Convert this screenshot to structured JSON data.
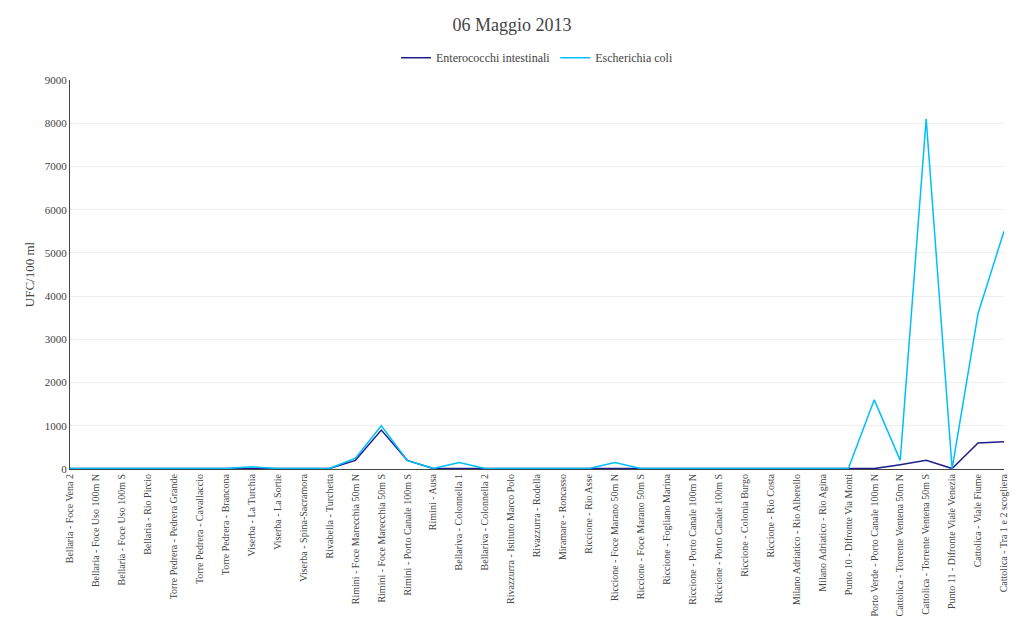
{
  "chart_data": {
    "type": "line",
    "title": "06 Maggio 2013",
    "ylabel": "UFC/100 ml",
    "categories": [
      "Bellaria - Foce Vena 2",
      "Bellaria - Foce Uso 100m N",
      "Bellaria - Foce Uso 100m S",
      "Bellaria - Rio Pircio",
      "Torre Pedrera - Pedrera Grande",
      "Torre Pedrera - Cavallaccio",
      "Torre Pedrera - Brancona",
      "Viserba - La Turchia",
      "Viserba - La Sortie",
      "Viserba - Spina-Sacramora",
      "Rivabella - Turchetta",
      "Rimini - Foce Marecchia 50m N",
      "Rimini - Foce Marecchia 50m S",
      "Rimini - Porto Canale 100m S",
      "Rimini - Ausa",
      "Bellariva - Colonnella 1",
      "Bellariva - Colonnella 2",
      "Rivazzurra - Istituto Marco Polo",
      "Rivazzurra - Rodella",
      "Miramare - Roncasso",
      "Riccione - Rio Asse",
      "Riccione - Foce Marano 50m N",
      "Riccione - Foce Marano 50m S",
      "Riccione - Fogliano Marina",
      "Riccione - Porto Canale 100m N",
      "Riccione - Porto Canale 100m S",
      "Riccione - Colonia Burgo",
      "Riccione - Rio Costa",
      "Milano Adriatico - Rio Alberello",
      "Milano Adriatico - Rio Agina",
      "Punto 10 - Difronte Via Monti",
      "Porto Verde - Porto Canale 100m N",
      "Cattolica - Torrente Ventena 50m N",
      "Cattolica - Torrente Ventena 50m S",
      "Punto 11 - Difronte Viale Venezia",
      "Cattolica - Viale Fiume",
      "Cattolica - Tra 1 e 2 scogliera"
    ],
    "series": [
      {
        "name": "Enterococchi intestinali",
        "color": "#1F1F8C",
        "values": [
          10,
          10,
          10,
          10,
          10,
          10,
          10,
          10,
          10,
          10,
          10,
          200,
          900,
          200,
          10,
          10,
          10,
          10,
          10,
          10,
          10,
          10,
          10,
          10,
          10,
          10,
          10,
          10,
          10,
          10,
          10,
          10,
          100,
          200,
          10,
          600,
          630
        ]
      },
      {
        "name": "Escherichia coli",
        "color": "#00BFFF",
        "values": [
          10,
          10,
          10,
          10,
          10,
          10,
          10,
          50,
          10,
          10,
          10,
          250,
          1000,
          200,
          10,
          150,
          10,
          10,
          10,
          10,
          10,
          150,
          10,
          10,
          10,
          10,
          10,
          10,
          10,
          10,
          10,
          1600,
          200,
          8100,
          10,
          3600,
          5500
        ]
      }
    ],
    "ylim": [
      0,
      9000
    ],
    "yticks": [
      0,
      1000,
      2000,
      3000,
      4000,
      5000,
      6000,
      7000,
      8000,
      9000
    ],
    "grid": true,
    "legend": "top"
  }
}
